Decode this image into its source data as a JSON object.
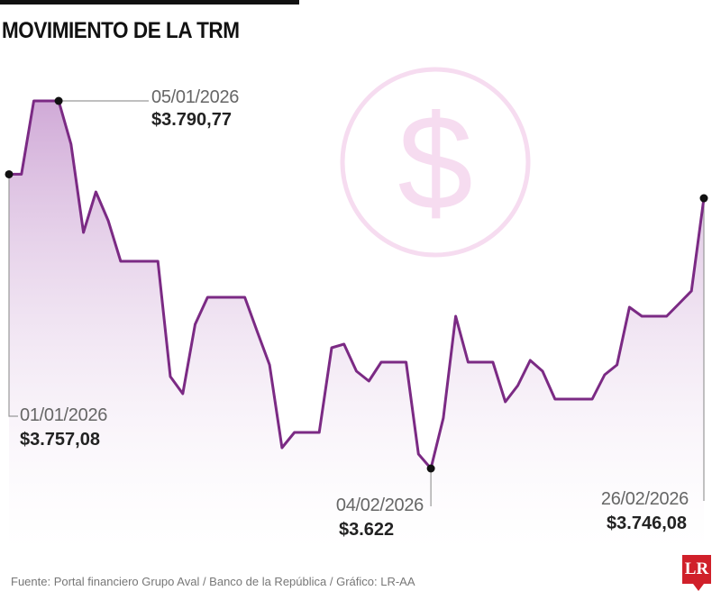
{
  "title": "MOVIMIENTO DE LA TRM",
  "source": "Fuente: Portal financiero Grupo Aval / Banco de la República  / Gráfico: LR-AA",
  "logo": "LR",
  "colors": {
    "line": "#7b2a84",
    "fill_top": "#c89bd0",
    "watermark": "#f6dcf0"
  },
  "chart_data": {
    "type": "area",
    "title": "MOVIMIENTO DE LA TRM",
    "xlabel": "",
    "ylabel": "",
    "x_unit": "days since 01/01/2026",
    "x": [
      0,
      1,
      2,
      4,
      5,
      6,
      7,
      8,
      9,
      12,
      13,
      14,
      15,
      16,
      19,
      20,
      21,
      22,
      23,
      25,
      26,
      27,
      28,
      29,
      30,
      32,
      33,
      34,
      35,
      36,
      37,
      39,
      40,
      41,
      42,
      43,
      44,
      47,
      48,
      49,
      50,
      51,
      53,
      54,
      55,
      56
    ],
    "values": [
      3757.08,
      3757.08,
      3790.77,
      3790.77,
      3770.91,
      3730.37,
      3748.99,
      3735.75,
      3717.13,
      3717.13,
      3664.18,
      3656.32,
      3688.17,
      3700.58,
      3700.58,
      3684.86,
      3669.56,
      3631.5,
      3638.53,
      3638.53,
      3677.42,
      3679.07,
      3666.66,
      3662.11,
      3670.8,
      3670.8,
      3628.6,
      3622.0,
      3645.15,
      3691.9,
      3670.8,
      3670.8,
      3652.59,
      3660.04,
      3671.62,
      3666.66,
      3653.84,
      3653.84,
      3665.01,
      3669.56,
      3696.03,
      3691.9,
      3691.9,
      3697.69,
      3703.48,
      3746.08
    ],
    "ylim": [
      3560,
      3820
    ],
    "xlim": [
      0,
      56
    ],
    "grid": false,
    "annotations": [
      {
        "date": "01/01/2026",
        "value": "$3.757,08",
        "x": 0
      },
      {
        "date": "05/01/2026",
        "value": "$3.790,77",
        "x": 4
      },
      {
        "date": "04/02/2026",
        "value": "$3.622",
        "x": 34
      },
      {
        "date": "26/02/2026",
        "value": "$3.746,08",
        "x": 56
      }
    ]
  }
}
